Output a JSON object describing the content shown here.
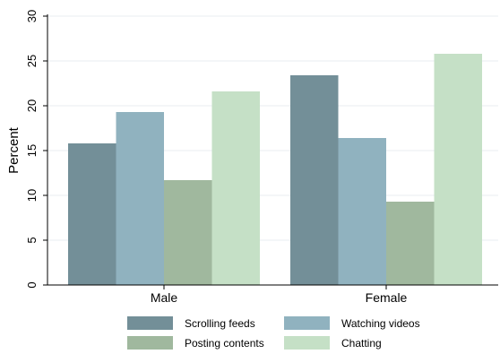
{
  "chart_data": {
    "type": "bar",
    "categories": [
      "Male",
      "Female"
    ],
    "series": [
      {
        "name": "Scrolling feeds",
        "values": [
          15.8,
          23.4
        ]
      },
      {
        "name": "Watching videos",
        "values": [
          19.3,
          16.4
        ]
      },
      {
        "name": "Posting contents",
        "values": [
          11.7,
          9.3
        ]
      },
      {
        "name": "Chatting",
        "values": [
          21.6,
          25.8
        ]
      }
    ],
    "title": "",
    "xlabel": "",
    "ylabel": "Percent",
    "ylim": [
      0,
      30
    ],
    "yticks": [
      0,
      5,
      10,
      15,
      20,
      25,
      30
    ],
    "grid": true,
    "legend_position": "bottom",
    "colors": {
      "Scrolling feeds": "#738f98",
      "Watching videos": "#90b2bf",
      "Posting contents": "#a0b89e",
      "Chatting": "#c5e0c6"
    },
    "gridline_color": "#e8eef2",
    "axis_color": "#000000"
  }
}
